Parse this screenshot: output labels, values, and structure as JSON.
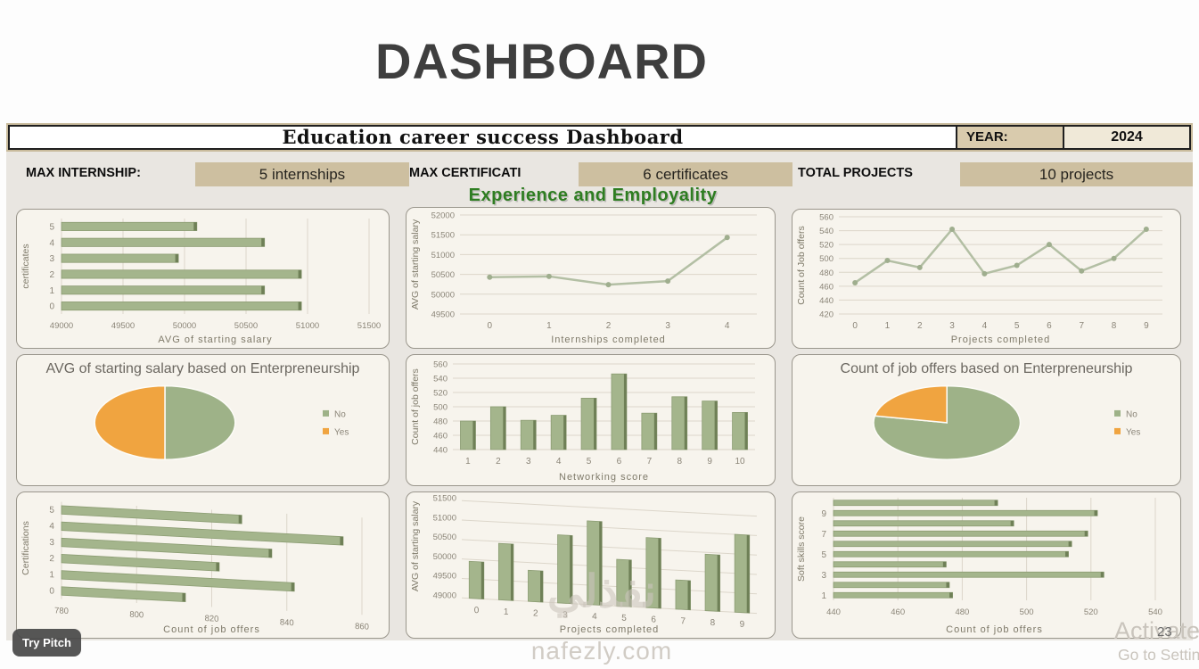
{
  "slide": {
    "title": "DASHBOARD",
    "page_number": "23"
  },
  "dashboard": {
    "title": "Education career success Dashboard",
    "year_label": "YEAR:",
    "year_value": "2024",
    "kpis": [
      {
        "label": "MAX INTERNSHIP:",
        "value": "5 internships"
      },
      {
        "label": "MAX CERTIFICATI",
        "value": "6 certificates"
      },
      {
        "label": "TOTAL PROJECTS",
        "value": "10 projects"
      }
    ],
    "section_title": "Experience and Employality"
  },
  "overlays": {
    "try_pitch": "Try Pitch",
    "activate_line1": "Activate",
    "activate_line2": "Go to Settin",
    "watermark_logo": "نفذلي",
    "watermark_domain": "nafezly.com"
  },
  "colors": {
    "bar_fill": "#a4b58c",
    "bar_stroke": "#8b9c72",
    "bar_cap": "#6f8057",
    "line": "#b3bfa4",
    "marker": "#9fae8e",
    "grid": "#dcd6ca",
    "tick_text": "#8b8578",
    "axis_title": "#7e7969",
    "pie_green": "#9eb288",
    "pie_orange": "#f0a440",
    "section_green": "#2e7d21",
    "tan": "#cdbfa0",
    "tan_light": "#f0e9d8",
    "card_bg": "#f7f4ed",
    "dashboard_bg": "#e9e6e1"
  },
  "chart_data": [
    {
      "id": "salary-by-certificates",
      "type": "barh",
      "ylabel": "certificates",
      "xlabel": "AVG of starting salary",
      "categories": [
        "0",
        "1",
        "2",
        "3",
        "4",
        "5"
      ],
      "values": [
        50950,
        50650,
        50950,
        49950,
        50650,
        50100
      ],
      "xlim": [
        49000,
        51500
      ],
      "xticks": [
        49000,
        49500,
        50000,
        50500,
        51000,
        51500
      ]
    },
    {
      "id": "salary-by-internships",
      "type": "line",
      "ylabel": "AVG of starting salary",
      "xlabel": "Internships completed",
      "categories": [
        "0",
        "1",
        "2",
        "3",
        "4"
      ],
      "values": [
        50430,
        50450,
        50240,
        50330,
        51430
      ],
      "ylim": [
        49500,
        52000
      ],
      "yticks": [
        49500,
        50000,
        50500,
        51000,
        51500,
        52000
      ]
    },
    {
      "id": "offers-by-projects",
      "type": "line",
      "ylabel": "Count of Job offers",
      "xlabel": "Projects completed",
      "categories": [
        "0",
        "1",
        "2",
        "3",
        "4",
        "5",
        "6",
        "7",
        "8",
        "9"
      ],
      "values": [
        465,
        497,
        487,
        542,
        478,
        490,
        520,
        482,
        500,
        542
      ],
      "ylim": [
        420,
        560
      ],
      "yticks": [
        420,
        440,
        460,
        480,
        500,
        520,
        540,
        560
      ]
    },
    {
      "id": "salary-by-entrepreneurship",
      "type": "pie",
      "title": "AVG of starting salary based on Enterpreneurship",
      "labels": [
        "No",
        "Yes"
      ],
      "values": [
        50,
        50
      ],
      "slice_colors": [
        "#9eb288",
        "#f0a440"
      ]
    },
    {
      "id": "offers-by-networking",
      "type": "bar",
      "ylabel": "Count of job offers",
      "xlabel": "Networking score",
      "categories": [
        "1",
        "2",
        "3",
        "4",
        "5",
        "6",
        "7",
        "8",
        "9",
        "10"
      ],
      "values": [
        480,
        500,
        481,
        488,
        512,
        546,
        491,
        514,
        508,
        492
      ],
      "ylim": [
        440,
        560
      ],
      "yticks": [
        440,
        460,
        480,
        500,
        520,
        540,
        560
      ]
    },
    {
      "id": "offers-by-entrepreneurship",
      "type": "pie",
      "title": "Count of job offers based on Enterpreneurship",
      "labels": [
        "No",
        "Yes"
      ],
      "values": [
        78,
        22
      ],
      "slice_colors": [
        "#9eb288",
        "#f0a440"
      ]
    },
    {
      "id": "offers-by-certifications",
      "type": "barh",
      "ylabel": "Certifications",
      "xlabel": "Count of job offers",
      "categories": [
        "0",
        "1",
        "2",
        "3",
        "4",
        "5"
      ],
      "values": [
        813,
        842,
        822,
        836,
        855,
        828
      ],
      "xlim": [
        780,
        860
      ],
      "xticks": [
        780,
        800,
        820,
        840,
        860
      ]
    },
    {
      "id": "salary-by-projects",
      "type": "bar",
      "ylabel": "AVG of starting salary",
      "xlabel": "Projects completed",
      "categories": [
        "0",
        "1",
        "2",
        "3",
        "4",
        "5",
        "6",
        "7",
        "8",
        "9"
      ],
      "values": [
        49950,
        50450,
        49800,
        50750,
        51150,
        50200,
        50800,
        49750,
        50450,
        51000
      ],
      "ylim": [
        49000,
        51500
      ],
      "yticks": [
        49000,
        49500,
        50000,
        50500,
        51000,
        51500
      ]
    },
    {
      "id": "offers-by-softskills",
      "type": "barh",
      "ylabel": "Soft skills score",
      "xlabel": "Count of job offers",
      "categories": [
        "1",
        "2",
        "3",
        "4",
        "5",
        "6",
        "7",
        "8",
        "9",
        "10"
      ],
      "display_categories": [
        "1",
        "",
        "3",
        "",
        "5",
        "",
        "7",
        "",
        "9",
        ""
      ],
      "values": [
        477,
        476,
        524,
        475,
        513,
        514,
        519,
        496,
        522,
        491
      ],
      "xlim": [
        440,
        540
      ],
      "xticks": [
        440,
        460,
        480,
        500,
        520,
        540
      ]
    }
  ]
}
